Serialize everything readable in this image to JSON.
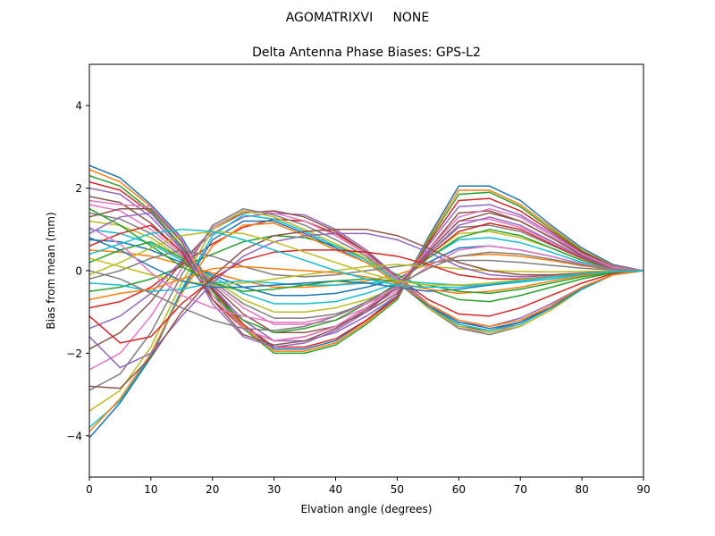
{
  "figure": {
    "suptitle": "AGOMATRIXVI     NONE"
  },
  "chart_data": {
    "type": "line",
    "title": "Delta Antenna Phase Biases: GPS-L2",
    "xlabel": "Elvation angle (degrees)",
    "ylabel": "Bias from mean (mm)",
    "xlim": [
      0,
      90
    ],
    "ylim": [
      -5,
      5
    ],
    "xticks": [
      0,
      10,
      20,
      30,
      40,
      50,
      60,
      70,
      80,
      90
    ],
    "yticks": [
      -4,
      -2,
      0,
      2,
      4
    ],
    "grid": false,
    "legend": "none",
    "colors": [
      "#1f77b4",
      "#ff7f0e",
      "#2ca02c",
      "#d62728",
      "#9467bd",
      "#8c564b",
      "#e377c2",
      "#7f7f7f",
      "#bcbd22",
      "#17becf"
    ],
    "x": [
      0,
      5,
      10,
      15,
      20,
      25,
      30,
      35,
      40,
      45,
      50,
      55,
      60,
      65,
      70,
      75,
      80,
      85,
      90
    ],
    "series": [
      {
        "values": [
          2.55,
          2.25,
          1.6,
          0.8,
          -0.4,
          -1.3,
          -1.9,
          -1.9,
          -1.7,
          -1.2,
          -0.6,
          0.8,
          2.05,
          2.05,
          1.7,
          1.1,
          0.55,
          0.15,
          0
        ]
      },
      {
        "values": [
          2.45,
          2.15,
          1.55,
          0.7,
          -0.45,
          -1.35,
          -1.95,
          -1.95,
          -1.75,
          -1.25,
          -0.65,
          0.75,
          1.95,
          1.95,
          1.6,
          1.05,
          0.5,
          0.12,
          0
        ]
      },
      {
        "values": [
          2.3,
          2.05,
          1.45,
          0.6,
          -0.5,
          -1.4,
          -2.0,
          -2.0,
          -1.8,
          -1.3,
          -0.7,
          0.7,
          1.85,
          1.9,
          1.55,
          1.0,
          0.48,
          0.1,
          0
        ]
      },
      {
        "values": [
          2.15,
          1.95,
          1.4,
          0.55,
          -0.45,
          -1.3,
          -1.85,
          -1.85,
          -1.65,
          -1.2,
          -0.65,
          0.65,
          1.7,
          1.75,
          1.45,
          0.95,
          0.45,
          0.1,
          0
        ]
      },
      {
        "values": [
          2.0,
          1.85,
          1.3,
          0.5,
          -0.4,
          -1.2,
          -1.7,
          -1.7,
          -1.5,
          -1.1,
          -0.6,
          0.6,
          1.55,
          1.6,
          1.35,
          0.9,
          0.42,
          0.1,
          0
        ]
      },
      {
        "values": [
          1.8,
          1.65,
          1.15,
          0.45,
          -0.35,
          -1.05,
          -1.5,
          -1.5,
          -1.35,
          -1.0,
          -0.55,
          0.5,
          1.4,
          1.45,
          1.2,
          0.8,
          0.38,
          0.08,
          0
        ]
      },
      {
        "values": [
          1.6,
          1.45,
          1.0,
          0.4,
          -0.3,
          -0.9,
          -1.3,
          -1.3,
          -1.2,
          -0.9,
          -0.5,
          0.45,
          1.2,
          1.25,
          1.05,
          0.7,
          0.33,
          0.08,
          0
        ]
      },
      {
        "values": [
          1.4,
          1.25,
          0.9,
          0.35,
          -0.25,
          -0.8,
          -1.15,
          -1.15,
          -1.05,
          -0.8,
          -0.45,
          0.4,
          1.05,
          1.1,
          0.95,
          0.62,
          0.3,
          0.07,
          0
        ]
      },
      {
        "values": [
          1.2,
          1.1,
          0.8,
          0.3,
          -0.2,
          -0.7,
          -1.0,
          -1.0,
          -0.9,
          -0.7,
          -0.4,
          0.35,
          0.9,
          0.95,
          0.8,
          0.55,
          0.25,
          0.06,
          0
        ]
      },
      {
        "values": [
          1.0,
          0.9,
          0.65,
          0.25,
          -0.15,
          -0.55,
          -0.8,
          -0.8,
          -0.75,
          -0.55,
          -0.3,
          0.3,
          0.75,
          0.8,
          0.68,
          0.45,
          0.2,
          0.05,
          0
        ]
      },
      {
        "values": [
          0.75,
          0.7,
          0.5,
          0.2,
          -0.1,
          -0.4,
          -0.6,
          -0.6,
          -0.55,
          -0.4,
          -0.2,
          0.2,
          0.55,
          0.6,
          0.5,
          0.35,
          0.16,
          0.04,
          0
        ]
      },
      {
        "values": [
          0.5,
          0.45,
          0.35,
          0.15,
          -0.05,
          -0.25,
          -0.4,
          -0.4,
          -0.35,
          -0.25,
          -0.1,
          0.15,
          0.35,
          0.4,
          0.35,
          0.25,
          0.12,
          0.03,
          0
        ]
      },
      {
        "values": [
          -0.5,
          -0.4,
          -0.2,
          0.1,
          0.4,
          0.7,
          0.85,
          0.8,
          0.6,
          0.3,
          -0.1,
          -0.45,
          -0.7,
          -0.75,
          -0.6,
          -0.4,
          -0.2,
          -0.05,
          0
        ]
      },
      {
        "values": [
          -0.9,
          -0.75,
          -0.4,
          0.15,
          0.65,
          1.05,
          1.25,
          1.2,
          0.9,
          0.45,
          -0.15,
          -0.7,
          -1.05,
          -1.1,
          -0.9,
          -0.6,
          -0.3,
          -0.07,
          0
        ]
      },
      {
        "values": [
          -1.4,
          -1.1,
          -0.55,
          0.25,
          0.9,
          1.3,
          1.4,
          1.35,
          1.0,
          0.5,
          -0.15,
          -0.8,
          -1.25,
          -1.35,
          -1.15,
          -0.8,
          -0.4,
          -0.1,
          0
        ]
      },
      {
        "values": [
          -1.9,
          -1.5,
          -0.75,
          0.2,
          1.0,
          1.4,
          1.45,
          1.3,
          0.95,
          0.45,
          -0.2,
          -0.85,
          -1.35,
          -1.45,
          -1.25,
          -0.85,
          -0.42,
          -0.1,
          0
        ]
      },
      {
        "values": [
          -2.4,
          -2.0,
          -1.1,
          0.05,
          1.05,
          1.45,
          1.4,
          1.2,
          0.85,
          0.4,
          -0.2,
          -0.9,
          -1.4,
          -1.5,
          -1.3,
          -0.9,
          -0.45,
          -0.1,
          0
        ]
      },
      {
        "values": [
          -2.9,
          -2.5,
          -1.5,
          -0.1,
          1.1,
          1.5,
          1.35,
          1.1,
          0.75,
          0.35,
          -0.25,
          -0.9,
          -1.4,
          -1.55,
          -1.35,
          -0.95,
          -0.45,
          -0.1,
          0
        ]
      },
      {
        "values": [
          -3.4,
          -2.9,
          -1.85,
          -0.3,
          1.0,
          1.45,
          1.3,
          1.0,
          0.65,
          0.3,
          -0.25,
          -0.9,
          -1.35,
          -1.5,
          -1.35,
          -0.95,
          -0.45,
          -0.1,
          0
        ]
      },
      {
        "values": [
          -3.8,
          -3.15,
          -2.05,
          -0.45,
          0.85,
          1.35,
          1.25,
          0.95,
          0.6,
          0.25,
          -0.25,
          -0.85,
          -1.3,
          -1.45,
          -1.3,
          -0.9,
          -0.45,
          -0.1,
          0
        ]
      },
      {
        "values": [
          -4.05,
          -3.2,
          -2.1,
          -0.5,
          0.75,
          1.2,
          1.2,
          0.9,
          0.55,
          0.2,
          -0.3,
          -0.85,
          -1.25,
          -1.4,
          -1.25,
          -0.9,
          -0.42,
          -0.1,
          0
        ]
      },
      {
        "values": [
          -3.9,
          -3.1,
          -2.0,
          -0.55,
          0.6,
          1.1,
          1.15,
          0.85,
          0.5,
          0.2,
          -0.3,
          -0.8,
          -1.2,
          -1.35,
          -1.2,
          -0.85,
          -0.4,
          -0.1,
          0
        ]
      },
      {
        "values": [
          0.2,
          0.5,
          0.7,
          0.3,
          -0.6,
          -1.2,
          -1.5,
          -1.4,
          -1.2,
          -0.8,
          -0.3,
          0.3,
          0.8,
          1.0,
          0.85,
          0.55,
          0.25,
          0.05,
          0
        ]
      },
      {
        "values": [
          0.6,
          0.9,
          1.1,
          0.45,
          -0.7,
          -1.4,
          -1.7,
          -1.6,
          -1.35,
          -0.9,
          -0.35,
          0.35,
          0.95,
          1.15,
          1.0,
          0.65,
          0.3,
          0.06,
          0
        ]
      },
      {
        "values": [
          0.9,
          1.3,
          1.4,
          0.55,
          -0.8,
          -1.6,
          -1.85,
          -1.75,
          -1.45,
          -1.0,
          -0.4,
          0.4,
          1.1,
          1.3,
          1.1,
          0.72,
          0.33,
          0.07,
          0
        ]
      },
      {
        "values": [
          1.3,
          1.5,
          1.5,
          0.7,
          -0.7,
          -1.55,
          -1.8,
          -1.7,
          -1.4,
          -0.95,
          -0.4,
          0.45,
          1.2,
          1.4,
          1.2,
          0.8,
          0.36,
          0.08,
          0
        ]
      },
      {
        "values": [
          1.7,
          1.6,
          1.55,
          0.75,
          -0.6,
          -1.4,
          -1.7,
          -1.6,
          -1.35,
          -0.9,
          -0.35,
          0.5,
          1.3,
          1.5,
          1.3,
          0.85,
          0.4,
          0.08,
          0
        ]
      },
      {
        "values": [
          -0.2,
          0.0,
          0.3,
          0.5,
          0.35,
          0.1,
          -0.1,
          -0.15,
          -0.1,
          0.0,
          0.1,
          0.2,
          0.25,
          0.25,
          0.2,
          0.13,
          0.06,
          0.02,
          0
        ]
      },
      {
        "values": [
          0.3,
          0.1,
          -0.1,
          -0.25,
          -0.35,
          -0.3,
          -0.2,
          -0.1,
          0.0,
          0.1,
          0.15,
          0.1,
          0.05,
          0.0,
          -0.02,
          -0.03,
          -0.02,
          -0.01,
          0
        ]
      },
      {
        "values": [
          -0.3,
          -0.35,
          -0.5,
          -0.45,
          -0.3,
          -0.25,
          -0.3,
          -0.35,
          -0.35,
          -0.3,
          -0.25,
          -0.3,
          -0.35,
          -0.35,
          -0.28,
          -0.2,
          -0.1,
          -0.03,
          0
        ]
      },
      {
        "values": [
          0.8,
          0.5,
          0.1,
          -0.25,
          -0.4,
          -0.4,
          -0.35,
          -0.3,
          -0.25,
          -0.3,
          -0.4,
          -0.5,
          -0.45,
          -0.35,
          -0.25,
          -0.15,
          -0.08,
          -0.02,
          0
        ]
      },
      {
        "values": [
          -0.7,
          -0.55,
          -0.45,
          -0.2,
          0.05,
          0.1,
          0.05,
          0.0,
          -0.05,
          -0.15,
          -0.3,
          -0.45,
          -0.55,
          -0.5,
          -0.4,
          -0.25,
          -0.12,
          -0.03,
          0
        ]
      },
      {
        "values": [
          1.5,
          1.1,
          0.6,
          0.1,
          -0.3,
          -0.5,
          -0.45,
          -0.35,
          -0.25,
          -0.2,
          -0.25,
          -0.35,
          -0.5,
          -0.55,
          -0.45,
          -0.3,
          -0.15,
          -0.04,
          0
        ]
      },
      {
        "values": [
          -1.1,
          -1.75,
          -1.6,
          -0.8,
          -0.2,
          0.25,
          0.45,
          0.5,
          0.5,
          0.45,
          0.35,
          0.15,
          -0.1,
          -0.2,
          -0.2,
          -0.15,
          -0.08,
          -0.02,
          0
        ]
      },
      {
        "values": [
          -1.6,
          -2.35,
          -2.0,
          -1.1,
          -0.3,
          0.35,
          0.7,
          0.85,
          0.9,
          0.9,
          0.75,
          0.45,
          0.1,
          -0.1,
          -0.15,
          -0.12,
          -0.07,
          -0.02,
          0
        ]
      },
      {
        "values": [
          -2.8,
          -2.85,
          -2.1,
          -1.0,
          -0.15,
          0.5,
          0.85,
          0.95,
          1.0,
          1.0,
          0.85,
          0.55,
          0.2,
          0.0,
          -0.1,
          -0.1,
          -0.06,
          -0.02,
          0
        ]
      },
      {
        "values": [
          1.05,
          0.65,
          -0.05,
          -0.6,
          -0.9,
          -1.1,
          -1.25,
          -1.25,
          -1.1,
          -0.8,
          -0.4,
          0.1,
          0.5,
          0.6,
          0.5,
          0.35,
          0.17,
          0.04,
          0
        ]
      },
      {
        "values": [
          0.0,
          -0.2,
          -0.55,
          -0.9,
          -1.2,
          -1.4,
          -1.45,
          -1.35,
          -1.1,
          -0.75,
          -0.35,
          0.05,
          0.35,
          0.45,
          0.4,
          0.28,
          0.14,
          0.04,
          0
        ]
      },
      {
        "values": [
          -0.1,
          0.2,
          0.55,
          0.85,
          0.95,
          0.9,
          0.7,
          0.45,
          0.2,
          -0.05,
          -0.25,
          -0.35,
          -0.35,
          -0.3,
          -0.22,
          -0.15,
          -0.08,
          -0.02,
          0
        ]
      },
      {
        "values": [
          0.4,
          0.65,
          0.9,
          1.0,
          0.95,
          0.75,
          0.5,
          0.25,
          0.0,
          -0.2,
          -0.35,
          -0.4,
          -0.4,
          -0.33,
          -0.25,
          -0.16,
          -0.08,
          -0.02,
          0
        ]
      }
    ]
  }
}
